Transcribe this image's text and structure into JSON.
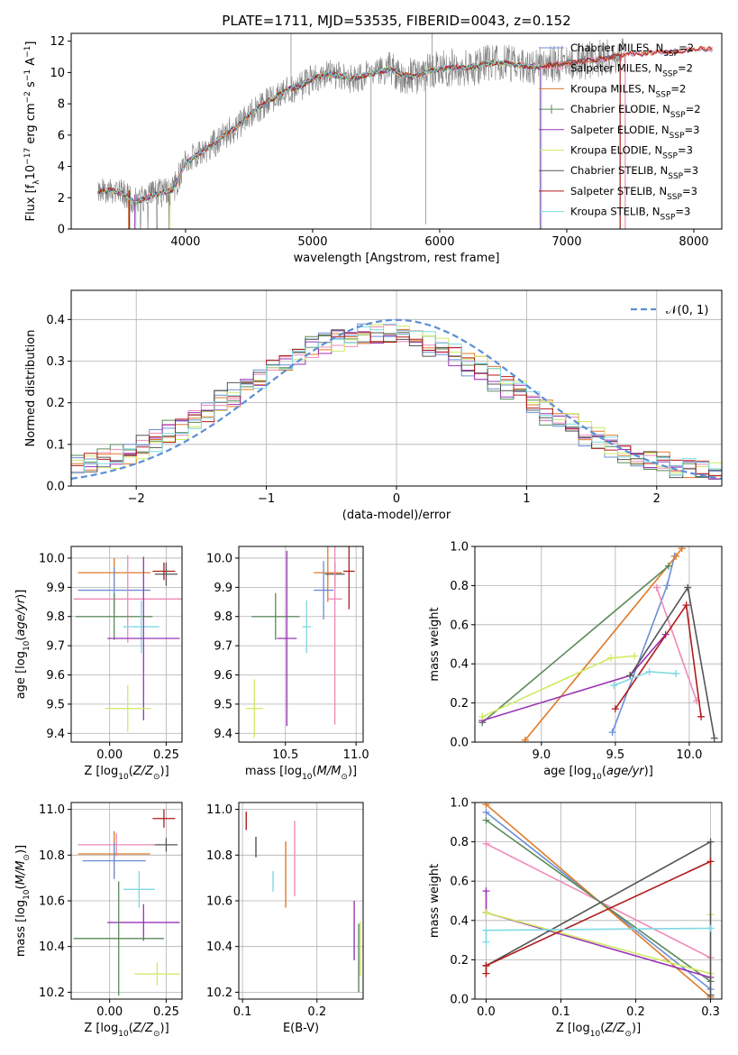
{
  "figure": {
    "title": "PLATE=1711, MJD=53535, FIBERID=0043, z=0.152"
  },
  "models": [
    {
      "name": "Chabrier MILES",
      "nssp": "2",
      "color": "#6b8fd6"
    },
    {
      "name": "Salpeter MILES",
      "nssp": "2",
      "color": "#ef89b7"
    },
    {
      "name": "Kroupa MILES",
      "nssp": "2",
      "color": "#e07a28"
    },
    {
      "name": "Chabrier ELODIE",
      "nssp": "2",
      "color": "#5a8a5a"
    },
    {
      "name": "Salpeter ELODIE",
      "nssp": "3",
      "color": "#9a35b5"
    },
    {
      "name": "Kroupa ELODIE",
      "nssp": "3",
      "color": "#cfea62"
    },
    {
      "name": "Chabrier STELIB",
      "nssp": "3",
      "color": "#555555"
    },
    {
      "name": "Salpeter STELIB",
      "nssp": "3",
      "color": "#b01c1c"
    },
    {
      "name": "Kroupa STELIB",
      "nssp": "3",
      "color": "#7fd9e2"
    }
  ],
  "legend_nssp_prefix": "N",
  "legend_nssp_sub": "SSP",
  "chart_data": [
    {
      "type": "line",
      "id": "spectrum",
      "xlabel": "wavelength [Angstrom, rest frame]",
      "ylabel": "Flux [f",
      "ylabel_sub": "λ",
      "ylabel_rest": "10",
      "ylabel_exp1": "−17",
      "ylabel_unit": " erg cm",
      "ylabel_exp2": "−2",
      "ylabel_unit2": " s",
      "ylabel_exp3": "−1",
      "ylabel_unit3": " A",
      "ylabel_exp4": "−1",
      "ylabel_end": "]",
      "xlim": [
        3100,
        8220
      ],
      "ylim": [
        0,
        12.5
      ],
      "xticks": [
        "4000",
        "5000",
        "6000",
        "7000",
        "8000"
      ],
      "yticks": [
        "0",
        "2",
        "4",
        "6",
        "8",
        "10",
        "12"
      ],
      "xtick_values": [
        4000,
        5000,
        6000,
        7000,
        8000
      ],
      "ytick_values": [
        0,
        2,
        4,
        6,
        8,
        10,
        12
      ],
      "data_color": "#808080",
      "continuum": {
        "x": [
          3300,
          3400,
          3500,
          3600,
          3700,
          3800,
          3900,
          4000,
          4100,
          4200,
          4300,
          4400,
          4500,
          4600,
          4700,
          4800,
          4900,
          5000,
          5100,
          5200,
          5300,
          5400,
          5500,
          5600,
          5700,
          5800,
          5900,
          6000,
          6100,
          6200,
          6300,
          6400,
          6500,
          6600,
          6700,
          6800,
          6900,
          7000,
          7100,
          7200,
          7300,
          7400,
          7500,
          7600,
          7700,
          7800,
          7900,
          8000
        ],
        "y": [
          2.3,
          2.5,
          2.3,
          1.7,
          2.0,
          2.3,
          2.5,
          4.2,
          4.8,
          5.3,
          6.0,
          6.5,
          7.3,
          7.9,
          8.4,
          8.9,
          9.1,
          9.6,
          9.9,
          9.8,
          9.6,
          9.8,
          10.0,
          10.2,
          9.9,
          9.7,
          10.1,
          10.2,
          10.3,
          10.3,
          10.4,
          10.6,
          10.6,
          10.5,
          10.4,
          10.4,
          10.5,
          10.6,
          10.7,
          10.8,
          10.9,
          11.1,
          11.2,
          11.2,
          11.3,
          11.3,
          11.4,
          11.5
        ]
      }
    },
    {
      "type": "bar",
      "id": "residual-histogram",
      "xlabel": "(data-model)/error",
      "ylabel": "Normed distribution",
      "xlim": [
        -2.5,
        2.5
      ],
      "ylim": [
        0,
        0.47
      ],
      "xticks": [
        "−2",
        "−1",
        "0",
        "1",
        "2"
      ],
      "xtick_values": [
        -2,
        -1,
        0,
        1,
        2
      ],
      "yticks": [
        "0.0",
        "0.1",
        "0.2",
        "0.3",
        "0.4"
      ],
      "ytick_values": [
        0,
        0.1,
        0.2,
        0.3,
        0.4
      ],
      "reference_label": "𝒩(0, 1)",
      "reference_color": "#5b8ed6",
      "bin_width": 0.1
    },
    {
      "type": "scatter",
      "id": "age-vs-metallicity",
      "xlabel": "Z [log",
      "xlabel_sub": "10",
      "xlabel_end": "(Z/Z",
      "xlabel_sun": "⊙",
      "xlabel_close": ")]",
      "ylabel": "age  [log",
      "ylabel_sub": "10",
      "ylabel_end": "(age/yr)]",
      "xlim": [
        -0.17,
        0.32
      ],
      "ylim": [
        9.37,
        10.04
      ],
      "xticks": [
        "0.00",
        "0.25"
      ],
      "xtick_values": [
        0,
        0.25
      ],
      "yticks": [
        "9.4",
        "9.5",
        "9.6",
        "9.7",
        "9.8",
        "9.9",
        "10.0"
      ],
      "ytick_values": [
        9.4,
        9.5,
        9.6,
        9.7,
        9.8,
        9.9,
        10.0
      ],
      "crosses": [
        {
          "m": 2,
          "x": 0.02,
          "y": 9.95,
          "xerr": 0.16,
          "yerr": 0.05
        },
        {
          "m": 7,
          "x": 0.24,
          "y": 9.955,
          "xerr": 0.05,
          "yerr": 0.03
        },
        {
          "m": 6,
          "x": 0.25,
          "y": 9.945,
          "xerr": 0.05,
          "yerr": 0.04
        },
        {
          "m": 0,
          "x": 0.02,
          "y": 9.89,
          "xerr": 0.16,
          "yerr": 0.08
        },
        {
          "m": 1,
          "x": 0.08,
          "y": 9.86,
          "xerr": 0.24,
          "yerr": 0.15
        },
        {
          "m": 3,
          "x": 0.02,
          "y": 9.8,
          "xerr": 0.17,
          "yerr": 0.08
        },
        {
          "m": 8,
          "x": 0.14,
          "y": 9.765,
          "xerr": 0.08,
          "yerr": 0.09
        },
        {
          "m": 4,
          "x": 0.15,
          "y": 9.725,
          "xerr": 0.16,
          "yerr": 0.28
        },
        {
          "m": 5,
          "x": 0.08,
          "y": 9.485,
          "xerr": 0.1,
          "yerr": 0.08
        }
      ]
    },
    {
      "type": "scatter",
      "id": "age-vs-mass",
      "xlabel": "mass [log",
      "xlabel_sub": "10",
      "xlabel_end": "(M/M",
      "xlabel_sun": "⊙",
      "xlabel_close": ")]",
      "xlim": [
        10.17,
        11.05
      ],
      "ylim": [
        9.37,
        10.04
      ],
      "xticks": [
        "10.5",
        "11.0"
      ],
      "xtick_values": [
        10.5,
        11.0
      ],
      "yticks": [
        "9.4",
        "9.5",
        "9.6",
        "9.7",
        "9.8",
        "9.9",
        "10.0"
      ],
      "ytick_values": [
        9.4,
        9.5,
        9.6,
        9.7,
        9.8,
        9.9,
        10.0
      ],
      "crosses": [
        {
          "m": 2,
          "x": 10.8,
          "y": 9.95,
          "xerr": 0.1,
          "yerr": 0.1
        },
        {
          "m": 7,
          "x": 10.95,
          "y": 9.955,
          "xerr": 0.04,
          "yerr": 0.13
        },
        {
          "m": 6,
          "x": 10.85,
          "y": 9.945,
          "xerr": 0.07,
          "yerr": 0.04
        },
        {
          "m": 0,
          "x": 10.77,
          "y": 9.89,
          "xerr": 0.07,
          "yerr": 0.1
        },
        {
          "m": 1,
          "x": 10.85,
          "y": 9.86,
          "xerr": 0.05,
          "yerr": 0.43
        },
        {
          "m": 3,
          "x": 10.43,
          "y": 9.8,
          "xerr": 0.17,
          "yerr": 0.08
        },
        {
          "m": 8,
          "x": 10.65,
          "y": 9.765,
          "xerr": 0.03,
          "yerr": 0.09
        },
        {
          "m": 4,
          "x": 10.51,
          "y": 9.725,
          "xerr": 0.07,
          "yerr": 0.3
        },
        {
          "m": 5,
          "x": 10.28,
          "y": 9.485,
          "xerr": 0.06,
          "yerr": 0.1
        }
      ]
    },
    {
      "type": "line",
      "id": "mass-weight-vs-age",
      "xlabel": "age  [log",
      "xlabel_sub": "10",
      "xlabel_end": "(age/yr)]",
      "ylabel": "mass weight",
      "xlim": [
        8.55,
        10.22
      ],
      "ylim": [
        0,
        1
      ],
      "xticks": [
        "9.0",
        "9.5",
        "10.0"
      ],
      "xtick_values": [
        9.0,
        9.5,
        10.0
      ],
      "yticks": [
        "0.0",
        "0.2",
        "0.4",
        "0.6",
        "0.8",
        "1.0"
      ],
      "ytick_values": [
        0,
        0.2,
        0.4,
        0.6,
        0.8,
        1.0
      ],
      "series": [
        {
          "m": 0,
          "x": [
            9.48,
            9.85,
            9.9
          ],
          "y": [
            0.05,
            0.8,
            0.95
          ]
        },
        {
          "m": 1,
          "x": [
            9.78,
            10.05
          ],
          "y": [
            0.79,
            0.21
          ]
        },
        {
          "m": 2,
          "x": [
            8.89,
            9.91,
            9.95
          ],
          "y": [
            0.01,
            0.95,
            0.99
          ]
        },
        {
          "m": 3,
          "x": [
            8.6,
            9.86
          ],
          "y": [
            0.1,
            0.9
          ]
        },
        {
          "m": 4,
          "x": [
            8.6,
            9.6,
            9.84
          ],
          "y": [
            0.11,
            0.34,
            0.55
          ]
        },
        {
          "m": 5,
          "x": [
            8.6,
            9.47,
            9.63
          ],
          "y": [
            0.13,
            0.43,
            0.44
          ]
        },
        {
          "m": 6,
          "x": [
            9.6,
            9.99,
            10.17
          ],
          "y": [
            0.34,
            0.79,
            0.02
          ]
        },
        {
          "m": 7,
          "x": [
            9.5,
            9.98,
            10.08
          ],
          "y": [
            0.17,
            0.7,
            0.13
          ]
        },
        {
          "m": 8,
          "x": [
            9.49,
            9.73,
            9.91
          ],
          "y": [
            0.29,
            0.36,
            0.35
          ]
        }
      ]
    },
    {
      "type": "scatter",
      "id": "mass-vs-metallicity",
      "xlabel": "Z [log",
      "xlabel_sub": "10",
      "xlabel_end": "(Z/Z",
      "xlabel_sun": "⊙",
      "xlabel_close": ")]",
      "ylabel": "mass [log",
      "ylabel_sub": "10",
      "ylabel_end": "(M/M",
      "ylabel_sun": "⊙",
      "ylabel_close": ")]",
      "xlim": [
        -0.17,
        0.32
      ],
      "ylim": [
        10.17,
        11.03
      ],
      "xticks": [
        "0.00",
        "0.25"
      ],
      "xtick_values": [
        0,
        0.25
      ],
      "yticks": [
        "10.2",
        "10.4",
        "10.6",
        "10.8",
        "11.0"
      ],
      "ytick_values": [
        10.2,
        10.4,
        10.6,
        10.8,
        11.0
      ],
      "crosses": [
        {
          "m": 7,
          "x": 0.24,
          "y": 10.96,
          "xerr": 0.05,
          "yerr": 0.04
        },
        {
          "m": 1,
          "x": 0.03,
          "y": 10.845,
          "xerr": 0.17,
          "yerr": 0.05
        },
        {
          "m": 6,
          "x": 0.25,
          "y": 10.845,
          "xerr": 0.05,
          "yerr": 0.03
        },
        {
          "m": 2,
          "x": 0.02,
          "y": 10.805,
          "xerr": 0.16,
          "yerr": 0.1
        },
        {
          "m": 0,
          "x": 0.02,
          "y": 10.775,
          "xerr": 0.14,
          "yerr": 0.08
        },
        {
          "m": 8,
          "x": 0.13,
          "y": 10.65,
          "xerr": 0.07,
          "yerr": 0.08
        },
        {
          "m": 4,
          "x": 0.15,
          "y": 10.505,
          "xerr": 0.16,
          "yerr": 0.08
        },
        {
          "m": 3,
          "x": 0.04,
          "y": 10.435,
          "xerr": 0.2,
          "yerr": 0.25
        },
        {
          "m": 5,
          "x": 0.21,
          "y": 10.28,
          "xerr": 0.1,
          "yerr": 0.05
        }
      ]
    },
    {
      "type": "scatter",
      "id": "mass-vs-extinction",
      "xlabel": "E(B-V)",
      "xlim": [
        0.095,
        0.262
      ],
      "ylim": [
        10.17,
        11.03
      ],
      "xticks": [
        "0.1",
        "0.2"
      ],
      "xtick_values": [
        0.1,
        0.2
      ],
      "yticks": [
        "10.2",
        "10.4",
        "10.6",
        "10.8",
        "11.0"
      ],
      "ytick_values": [
        10.2,
        10.4,
        10.6,
        10.8,
        11.0
      ],
      "bars": [
        {
          "m": 7,
          "x": 0.105,
          "y1": 10.91,
          "y2": 10.99
        },
        {
          "m": 6,
          "x": 0.118,
          "y1": 10.79,
          "y2": 10.88
        },
        {
          "m": 8,
          "x": 0.141,
          "y1": 10.64,
          "y2": 10.73
        },
        {
          "m": 2,
          "x": 0.158,
          "y1": 10.57,
          "y2": 10.86
        },
        {
          "m": 1,
          "x": 0.17,
          "y1": 10.62,
          "y2": 10.95
        },
        {
          "m": 4,
          "x": 0.25,
          "y1": 10.34,
          "y2": 10.6
        },
        {
          "m": 3,
          "x": 0.256,
          "y1": 10.2,
          "y2": 10.5
        },
        {
          "m": 5,
          "x": 0.258,
          "y1": 10.27,
          "y2": 10.51
        }
      ]
    },
    {
      "type": "line",
      "id": "mass-weight-vs-metallicity",
      "xlabel": "Z [log",
      "xlabel_sub": "10",
      "xlabel_end": "(Z/Z",
      "xlabel_sun": "⊙",
      "xlabel_close": ")]",
      "ylabel": "mass weight",
      "xlim": [
        -0.015,
        0.315
      ],
      "ylim": [
        0,
        1
      ],
      "xticks": [
        "0.0",
        "0.1",
        "0.2",
        "0.3"
      ],
      "xtick_values": [
        0,
        0.1,
        0.2,
        0.3
      ],
      "yticks": [
        "0.0",
        "0.2",
        "0.4",
        "0.6",
        "0.8",
        "1.0"
      ],
      "ytick_values": [
        0,
        0.2,
        0.4,
        0.6,
        0.8,
        1.0
      ],
      "series": [
        {
          "m": 0,
          "x": [
            0,
            0.3
          ],
          "y": [
            0.95,
            0.05
          ]
        },
        {
          "m": 1,
          "x": [
            0,
            0.3
          ],
          "y": [
            0.79,
            0.21
          ]
        },
        {
          "m": 2,
          "x": [
            0,
            0.3
          ],
          "y": [
            0.99,
            0.01
          ]
        },
        {
          "m": 3,
          "x": [
            0,
            0.3
          ],
          "y": [
            0.91,
            0.09
          ]
        },
        {
          "m": 4,
          "x": [
            0,
            0,
            0.3
          ],
          "y": [
            0.55,
            0.44,
            0.11
          ]
        },
        {
          "m": 5,
          "x": [
            0,
            0.3,
            0.3
          ],
          "y": [
            0.44,
            0.13,
            0.43
          ]
        },
        {
          "m": 6,
          "x": [
            0,
            0.3,
            0.3
          ],
          "y": [
            0.17,
            0.8,
            0.02
          ]
        },
        {
          "m": 7,
          "x": [
            0,
            0,
            0.3
          ],
          "y": [
            0.13,
            0.17,
            0.7
          ]
        },
        {
          "m": 8,
          "x": [
            0,
            0,
            0.3
          ],
          "y": [
            0.29,
            0.35,
            0.36
          ]
        }
      ]
    }
  ]
}
